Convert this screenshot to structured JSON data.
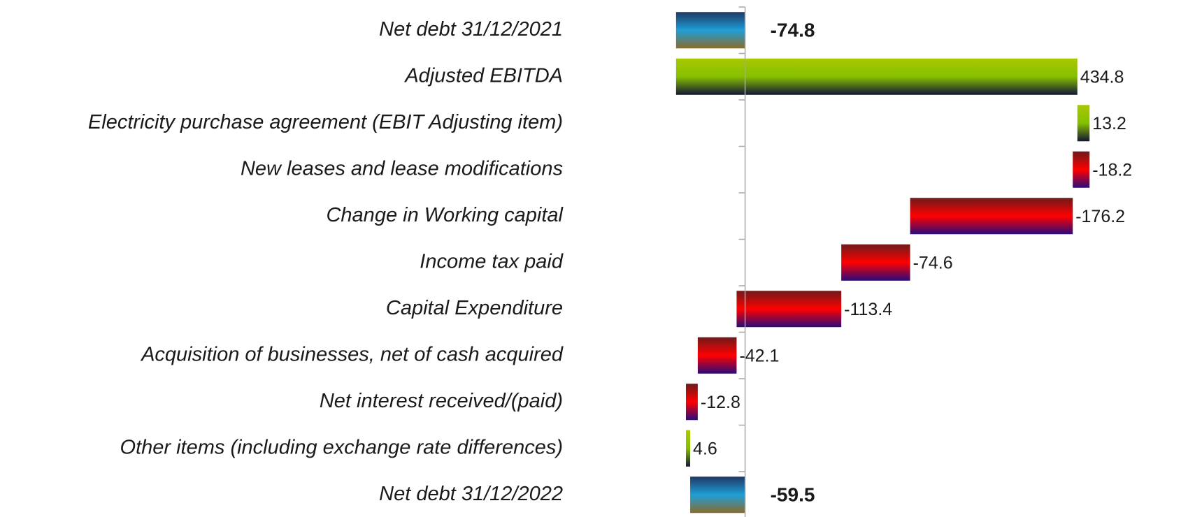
{
  "chart_data": {
    "type": "waterfall",
    "categories": [
      "Net debt 31/12/2021",
      "Adjusted EBITDA",
      "Electricity purchase agreement (EBIT Adjusting item)",
      "New leases and lease modifications",
      "Change in Working capital",
      "Income tax paid",
      "Capital Expenditure",
      "Acquisition of businesses, net of cash acquired",
      "Net interest received/(paid)",
      "Other items (including exchange rate differences)",
      "Net debt 31/12/2022"
    ],
    "values": [
      -74.8,
      434.8,
      13.2,
      -18.2,
      -176.2,
      -74.6,
      -113.4,
      -42.1,
      -12.8,
      4.6,
      -59.5
    ],
    "totals": [
      0,
      10
    ],
    "xlim": [
      -80,
      420
    ],
    "total_color": "#1e9fd8",
    "increase_color": "#86c000",
    "decrease_color": "#ff0000"
  }
}
